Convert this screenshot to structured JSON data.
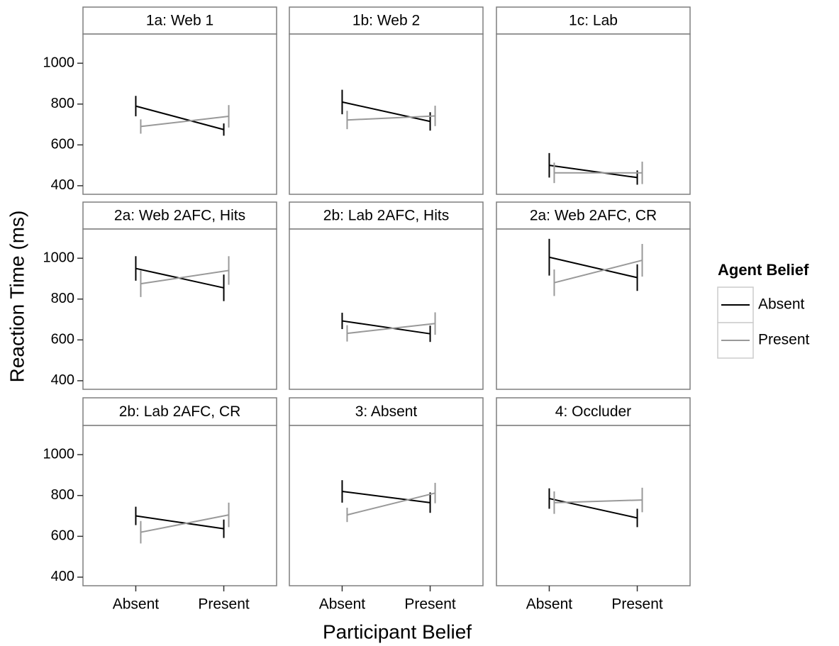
{
  "chart_data": {
    "type": "line",
    "x_label": "Participant Belief",
    "y_label": "Reaction Time (ms)",
    "legend_title": "Agent Belief",
    "categories": [
      "Absent",
      "Present"
    ],
    "ylim": [
      358,
      1143
    ],
    "yticks": [
      400,
      600,
      800,
      1000
    ],
    "series": [
      {
        "name": "Absent",
        "color": "#000000"
      },
      {
        "name": "Present",
        "color": "#999999"
      }
    ],
    "panels": [
      {
        "title": "1a: Web 1",
        "values": [
          [
            790,
            675
          ],
          [
            690,
            740
          ]
        ],
        "errors": [
          [
            50,
            30
          ],
          [
            35,
            55
          ]
        ]
      },
      {
        "title": "1b: Web 2",
        "values": [
          [
            810,
            715
          ],
          [
            722,
            742
          ]
        ],
        "errors": [
          [
            60,
            45
          ],
          [
            45,
            50
          ]
        ]
      },
      {
        "title": "1c: Lab",
        "values": [
          [
            500,
            440
          ],
          [
            463,
            463
          ]
        ],
        "errors": [
          [
            60,
            35
          ],
          [
            50,
            55
          ]
        ]
      },
      {
        "title": "2a: Web 2AFC, Hits",
        "values": [
          [
            950,
            855
          ],
          [
            875,
            940
          ]
        ],
        "errors": [
          [
            60,
            65
          ],
          [
            65,
            70
          ]
        ]
      },
      {
        "title": "2b: Lab 2AFC, Hits",
        "values": [
          [
            693,
            630
          ],
          [
            632,
            680
          ]
        ],
        "errors": [
          [
            40,
            40
          ],
          [
            40,
            55
          ]
        ]
      },
      {
        "title": "2a: Web 2AFC, CR",
        "values": [
          [
            1005,
            905
          ],
          [
            880,
            990
          ]
        ],
        "errors": [
          [
            90,
            65
          ],
          [
            65,
            80
          ]
        ]
      },
      {
        "title": "2b: Lab 2AFC, CR",
        "values": [
          [
            700,
            637
          ],
          [
            620,
            705
          ]
        ],
        "errors": [
          [
            45,
            45
          ],
          [
            55,
            60
          ]
        ]
      },
      {
        "title": "3: Absent",
        "values": [
          [
            820,
            765
          ],
          [
            705,
            812
          ]
        ],
        "errors": [
          [
            55,
            50
          ],
          [
            35,
            50
          ]
        ]
      },
      {
        "title": "4: Occluder",
        "values": [
          [
            785,
            690
          ],
          [
            765,
            778
          ]
        ],
        "errors": [
          [
            50,
            45
          ],
          [
            55,
            60
          ]
        ]
      }
    ]
  }
}
